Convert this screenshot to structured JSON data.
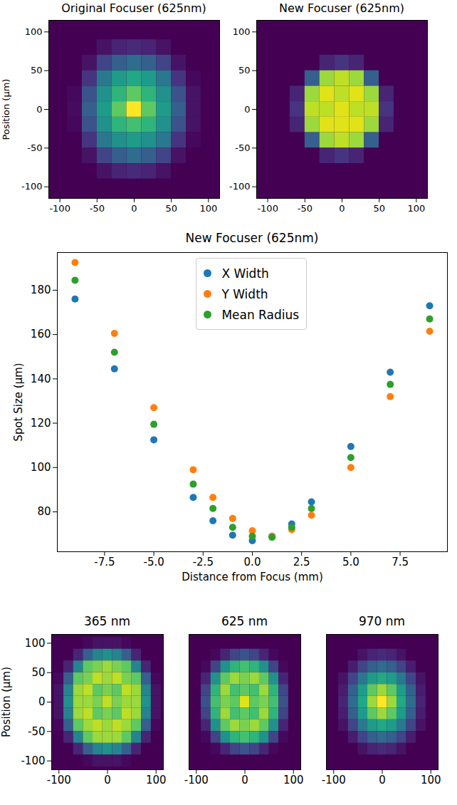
{
  "chart_data": [
    {
      "type": "heatmap",
      "title": "Original Focuser (625nm)",
      "ylabel": "Position (μm)",
      "xlim": [
        -115,
        115
      ],
      "ylim": [
        -115,
        115
      ],
      "xticks": [
        -100,
        -50,
        0,
        50,
        100
      ],
      "yticks": [
        -100,
        -50,
        0,
        50,
        100
      ],
      "x": [
        -100,
        -80,
        -60,
        -40,
        -20,
        0,
        20,
        40,
        60,
        80,
        100
      ],
      "y": [
        100,
        80,
        60,
        40,
        20,
        0,
        -20,
        -40,
        -60,
        -80,
        -100
      ],
      "zlim": [
        0,
        1
      ],
      "color": "viridis",
      "z": [
        [
          0,
          0,
          0,
          0,
          0,
          0,
          0,
          0,
          0,
          0,
          0
        ],
        [
          0,
          0,
          0,
          0.05,
          0.1,
          0.12,
          0.1,
          0.05,
          0,
          0,
          0
        ],
        [
          0,
          0,
          0.05,
          0.2,
          0.3,
          0.35,
          0.3,
          0.2,
          0.05,
          0,
          0
        ],
        [
          0,
          0,
          0.15,
          0.4,
          0.55,
          0.6,
          0.55,
          0.4,
          0.15,
          0.02,
          0
        ],
        [
          0,
          0.02,
          0.25,
          0.5,
          0.65,
          0.75,
          0.65,
          0.5,
          0.25,
          0.05,
          0
        ],
        [
          0,
          0.03,
          0.3,
          0.55,
          0.75,
          1.0,
          0.75,
          0.55,
          0.3,
          0.05,
          0
        ],
        [
          0,
          0.02,
          0.25,
          0.5,
          0.65,
          0.7,
          0.65,
          0.5,
          0.25,
          0.05,
          0
        ],
        [
          0,
          0,
          0.15,
          0.4,
          0.5,
          0.55,
          0.5,
          0.4,
          0.15,
          0.02,
          0
        ],
        [
          0,
          0,
          0.05,
          0.2,
          0.3,
          0.35,
          0.3,
          0.2,
          0.05,
          0,
          0
        ],
        [
          0,
          0,
          0,
          0.05,
          0.1,
          0.12,
          0.1,
          0.05,
          0,
          0,
          0
        ],
        [
          0,
          0,
          0,
          0,
          0,
          0,
          0,
          0,
          0,
          0,
          0
        ]
      ]
    },
    {
      "type": "heatmap",
      "title": "New Focuser (625nm)",
      "xlim": [
        -115,
        115
      ],
      "ylim": [
        -115,
        115
      ],
      "xticks": [
        -100,
        -50,
        0,
        50,
        100
      ],
      "yticks": [
        -100,
        -50,
        0,
        50,
        100
      ],
      "x": [
        -100,
        -80,
        -60,
        -40,
        -20,
        0,
        20,
        40,
        60,
        80,
        100
      ],
      "y": [
        100,
        80,
        60,
        40,
        20,
        0,
        -20,
        -40,
        -60,
        -80,
        -100
      ],
      "zlim": [
        0,
        1
      ],
      "color": "viridis",
      "z": [
        [
          0,
          0,
          0,
          0,
          0,
          0,
          0,
          0,
          0,
          0,
          0
        ],
        [
          0,
          0,
          0,
          0,
          0,
          0,
          0,
          0,
          0,
          0,
          0
        ],
        [
          0,
          0,
          0,
          0,
          0.1,
          0.15,
          0.1,
          0,
          0,
          0,
          0
        ],
        [
          0,
          0,
          0,
          0.3,
          0.85,
          0.9,
          0.85,
          0.3,
          0,
          0,
          0
        ],
        [
          0,
          0,
          0.1,
          0.85,
          0.95,
          0.9,
          0.95,
          0.85,
          0.1,
          0,
          0
        ],
        [
          0,
          0,
          0.15,
          0.9,
          0.9,
          0.95,
          0.9,
          0.9,
          0.15,
          0,
          0
        ],
        [
          0,
          0,
          0.1,
          0.85,
          0.95,
          0.95,
          0.95,
          0.85,
          0.1,
          0,
          0
        ],
        [
          0,
          0,
          0,
          0.3,
          0.85,
          0.9,
          0.85,
          0.3,
          0,
          0,
          0
        ],
        [
          0,
          0,
          0,
          0,
          0.1,
          0.15,
          0.1,
          0,
          0,
          0,
          0
        ],
        [
          0,
          0,
          0,
          0,
          0,
          0,
          0,
          0,
          0,
          0,
          0
        ],
        [
          0,
          0,
          0,
          0,
          0,
          0,
          0,
          0,
          0,
          0,
          0
        ]
      ]
    },
    {
      "type": "scatter",
      "title": "New Focuser (625nm)",
      "xlabel": "Distance from Focus (mm)",
      "ylabel": "Spot Size (μm)",
      "xlim": [
        -9.9,
        9.9
      ],
      "ylim": [
        62,
        197
      ],
      "xticks": [
        -7.5,
        {
          "value": -5,
          "label": "-5.0"
        },
        -2.5,
        {
          "value": 0,
          "label": "0.0"
        },
        2.5,
        {
          "value": 5,
          "label": "5.0"
        },
        7.5
      ],
      "yticks": [
        80,
        100,
        120,
        140,
        160,
        180
      ],
      "legend": "top",
      "marker": "circle",
      "x": [
        -9,
        -7,
        -5,
        -3,
        -2,
        -1,
        0,
        1,
        2,
        3,
        5,
        7,
        9
      ],
      "series": [
        {
          "name": "X Width",
          "color": "#1f77b4",
          "values": [
            176,
            144.5,
            112.5,
            86.5,
            76,
            69.5,
            67,
            69,
            74.5,
            84.5,
            109.5,
            143,
            173
          ]
        },
        {
          "name": "Y Width",
          "color": "#ff7f0e",
          "values": [
            192.5,
            160.5,
            127,
            99,
            86.5,
            77,
            71.5,
            69,
            72,
            78.5,
            100,
            132,
            161.5
          ]
        },
        {
          "name": "Mean Radius",
          "color": "#2ca02c",
          "values": [
            184.5,
            152,
            119.5,
            92.5,
            81.5,
            73,
            69,
            68.5,
            73,
            81.5,
            104.5,
            137.5,
            167
          ]
        }
      ]
    },
    {
      "type": "heatmap",
      "title": "365 nm",
      "ylabel": "Position (μm)",
      "xlim": [
        -115,
        115
      ],
      "ylim": [
        -115,
        115
      ],
      "xticks": [
        -100,
        0,
        100
      ],
      "yticks": [
        -100,
        -50,
        0,
        50,
        100
      ],
      "x": [
        -100,
        -80,
        -60,
        -40,
        -20,
        0,
        20,
        40,
        60,
        80,
        100
      ],
      "y": [
        100,
        80,
        60,
        40,
        20,
        0,
        -20,
        -40,
        -60,
        -80,
        -100
      ],
      "zlim": [
        0,
        1
      ],
      "color": "viridis",
      "z": [
        [
          0,
          0,
          0,
          0.02,
          0.05,
          0.05,
          0.05,
          0.02,
          0,
          0,
          0
        ],
        [
          0,
          0,
          0.1,
          0.3,
          0.45,
          0.5,
          0.45,
          0.3,
          0.1,
          0,
          0
        ],
        [
          0,
          0.1,
          0.45,
          0.75,
          0.8,
          0.85,
          0.8,
          0.75,
          0.45,
          0.1,
          0
        ],
        [
          0.02,
          0.3,
          0.75,
          0.8,
          0.9,
          0.85,
          0.9,
          0.8,
          0.75,
          0.3,
          0.02
        ],
        [
          0.05,
          0.45,
          0.85,
          0.9,
          0.75,
          0.8,
          0.75,
          0.9,
          0.85,
          0.45,
          0.05
        ],
        [
          0.05,
          0.5,
          0.85,
          0.85,
          0.8,
          0.9,
          0.8,
          0.85,
          0.85,
          0.5,
          0.05
        ],
        [
          0.05,
          0.45,
          0.85,
          0.9,
          0.75,
          0.8,
          0.75,
          0.9,
          0.85,
          0.45,
          0.05
        ],
        [
          0.02,
          0.3,
          0.75,
          0.85,
          0.9,
          0.85,
          0.9,
          0.85,
          0.75,
          0.3,
          0.02
        ],
        [
          0,
          0.1,
          0.45,
          0.75,
          0.85,
          0.85,
          0.85,
          0.75,
          0.45,
          0.1,
          0
        ],
        [
          0,
          0,
          0.1,
          0.3,
          0.45,
          0.5,
          0.45,
          0.3,
          0.1,
          0,
          0
        ],
        [
          0,
          0,
          0,
          0.02,
          0.05,
          0.05,
          0.05,
          0.02,
          0,
          0,
          0
        ]
      ]
    },
    {
      "type": "heatmap",
      "title": "625 nm",
      "tick_labels": "x",
      "xlim": [
        -115,
        115
      ],
      "ylim": [
        -115,
        115
      ],
      "xticks": [
        -100,
        0,
        100
      ],
      "x": [
        -100,
        -80,
        -60,
        -40,
        -20,
        0,
        20,
        40,
        60,
        80,
        100
      ],
      "y": [
        100,
        80,
        60,
        40,
        20,
        0,
        -20,
        -40,
        -60,
        -80,
        -100
      ],
      "zlim": [
        0,
        1
      ],
      "color": "viridis",
      "z": [
        [
          0,
          0,
          0,
          0,
          0,
          0,
          0,
          0,
          0,
          0,
          0
        ],
        [
          0,
          0,
          0.02,
          0.1,
          0.2,
          0.25,
          0.2,
          0.1,
          0.02,
          0,
          0
        ],
        [
          0,
          0.02,
          0.2,
          0.5,
          0.65,
          0.7,
          0.65,
          0.5,
          0.2,
          0.02,
          0
        ],
        [
          0,
          0.1,
          0.5,
          0.75,
          0.85,
          0.8,
          0.85,
          0.75,
          0.5,
          0.1,
          0
        ],
        [
          0,
          0.2,
          0.65,
          0.85,
          0.7,
          0.75,
          0.7,
          0.85,
          0.65,
          0.2,
          0
        ],
        [
          0,
          0.25,
          0.7,
          0.8,
          0.75,
          0.95,
          0.75,
          0.8,
          0.7,
          0.25,
          0
        ],
        [
          0,
          0.2,
          0.65,
          0.85,
          0.7,
          0.75,
          0.7,
          0.85,
          0.65,
          0.2,
          0
        ],
        [
          0,
          0.1,
          0.5,
          0.75,
          0.85,
          0.8,
          0.85,
          0.75,
          0.5,
          0.1,
          0
        ],
        [
          0,
          0.02,
          0.2,
          0.5,
          0.65,
          0.7,
          0.65,
          0.5,
          0.2,
          0.02,
          0
        ],
        [
          0,
          0,
          0.02,
          0.1,
          0.2,
          0.25,
          0.2,
          0.1,
          0.02,
          0,
          0
        ],
        [
          0,
          0,
          0,
          0,
          0,
          0,
          0,
          0,
          0,
          0,
          0
        ]
      ]
    },
    {
      "type": "heatmap",
      "title": "970 nm",
      "tick_labels": "x",
      "xlim": [
        -115,
        115
      ],
      "ylim": [
        -115,
        115
      ],
      "xticks": [
        -100,
        0,
        100
      ],
      "x": [
        -100,
        -80,
        -60,
        -40,
        -20,
        0,
        20,
        40,
        60,
        80,
        100
      ],
      "y": [
        100,
        80,
        60,
        40,
        20,
        0,
        -20,
        -40,
        -60,
        -80,
        -100
      ],
      "zlim": [
        0,
        1
      ],
      "color": "viridis",
      "z": [
        [
          0,
          0,
          0,
          0,
          0,
          0,
          0,
          0,
          0,
          0,
          0
        ],
        [
          0,
          0,
          0,
          0.05,
          0.1,
          0.12,
          0.1,
          0.05,
          0,
          0,
          0
        ],
        [
          0,
          0,
          0.08,
          0.2,
          0.3,
          0.35,
          0.3,
          0.2,
          0.08,
          0,
          0
        ],
        [
          0,
          0.05,
          0.2,
          0.4,
          0.55,
          0.6,
          0.55,
          0.4,
          0.2,
          0.05,
          0
        ],
        [
          0,
          0.08,
          0.3,
          0.55,
          0.75,
          0.85,
          0.75,
          0.55,
          0.3,
          0.08,
          0
        ],
        [
          0,
          0.1,
          0.35,
          0.6,
          0.85,
          1.0,
          0.85,
          0.6,
          0.35,
          0.1,
          0
        ],
        [
          0,
          0.08,
          0.3,
          0.55,
          0.75,
          0.85,
          0.75,
          0.55,
          0.3,
          0.08,
          0
        ],
        [
          0,
          0.05,
          0.2,
          0.4,
          0.55,
          0.6,
          0.55,
          0.4,
          0.2,
          0.05,
          0
        ],
        [
          0,
          0,
          0.08,
          0.2,
          0.3,
          0.35,
          0.3,
          0.2,
          0.08,
          0,
          0
        ],
        [
          0,
          0,
          0,
          0.05,
          0.1,
          0.12,
          0.1,
          0.05,
          0,
          0,
          0
        ],
        [
          0,
          0,
          0,
          0,
          0,
          0,
          0,
          0,
          0,
          0,
          0
        ]
      ]
    }
  ]
}
